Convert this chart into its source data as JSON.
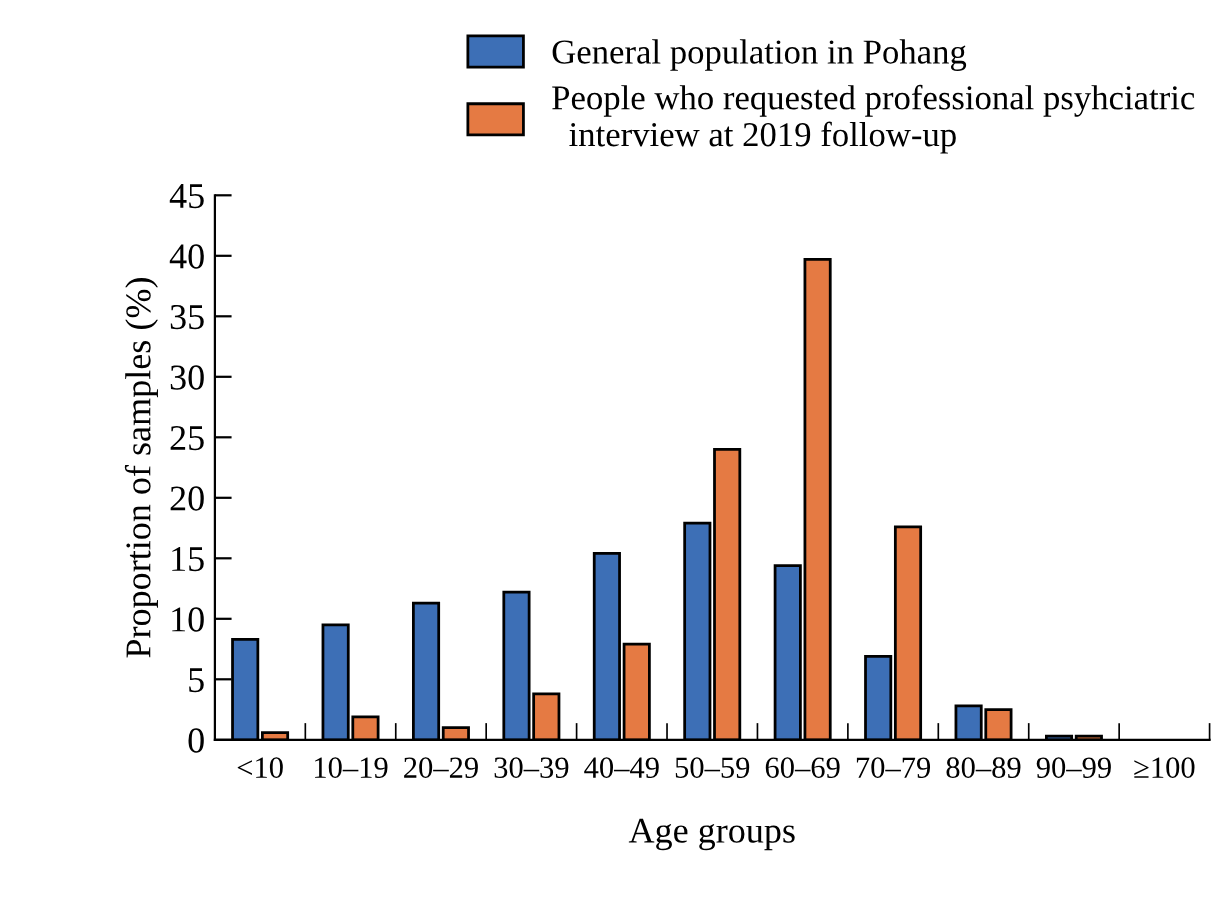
{
  "chart_data": {
    "type": "bar",
    "xlabel": "Age groups",
    "ylabel": "Proportion of samples (%)",
    "categories": [
      "<10",
      "10–19",
      "20–29",
      "30–39",
      "40–49",
      "50–59",
      "60–69",
      "70–79",
      "80–89",
      "90–99",
      "≥100"
    ],
    "series": [
      {
        "name": "General population in Pohang",
        "color": "#3d6fb6",
        "values": [
          8.3,
          9.5,
          11.3,
          12.2,
          15.4,
          17.9,
          14.4,
          6.9,
          2.8,
          0.3,
          null
        ]
      },
      {
        "name": "People who requested professional psyhciatric\n  interview at 2019 follow-up",
        "color": "#e57a43",
        "values": [
          0.6,
          1.9,
          1.0,
          3.8,
          7.9,
          24.0,
          39.7,
          17.6,
          2.5,
          0.3,
          null
        ]
      }
    ],
    "ylim": [
      0,
      45
    ],
    "yticks": [
      0,
      5,
      10,
      15,
      20,
      25,
      30,
      35,
      40,
      45
    ],
    "grid": false,
    "legend": "top"
  }
}
